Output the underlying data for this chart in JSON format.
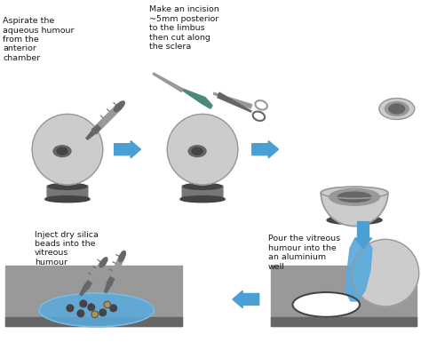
{
  "bg_color": "#ffffff",
  "gray_light": "#cccccc",
  "gray_mid": "#999999",
  "gray_dark": "#666666",
  "gray_darker": "#444444",
  "gray_stand": "#777777",
  "blue_arrow": "#4a9fd4",
  "blue_fill": "#5aabdd",
  "blue_light": "#7bbfe8",
  "text_color": "#1a1a1a",
  "text_fontsize": 6.8,
  "green_blade": "#4a8a7a",
  "labels": {
    "step1": "Aspirate the\naqueous humour\nfrom the\nanterior\nchamber",
    "step2": "Make an incision\n~5mm posterior\nto the limbus\nthen cut along\nthe sclera",
    "step4": "Pour the vitreous\nhumour into the\nan aluminium\nwell",
    "step5": "Inject dry silica\nbeads into the\nvitreous\nhumour"
  }
}
